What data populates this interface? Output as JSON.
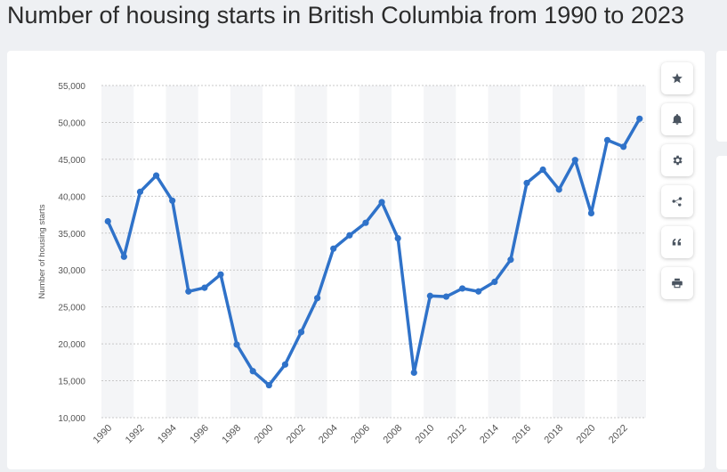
{
  "title": "Number of housing starts in British Columbia from 1990 to 2023",
  "toolbar": [
    {
      "name": "star-icon"
    },
    {
      "name": "bell-icon"
    },
    {
      "name": "gear-icon"
    },
    {
      "name": "share-icon"
    },
    {
      "name": "quote-icon"
    },
    {
      "name": "print-icon"
    }
  ],
  "colors": {
    "line": "#2f72c9",
    "band": "#f4f5f7",
    "grid": "#c8c8c8"
  },
  "chart_data": {
    "type": "line",
    "title": "Number of housing starts in British Columbia from 1990 to 2023",
    "ylabel": "Number of housing starts",
    "xlabel": "",
    "ylim": [
      10000,
      55000
    ],
    "yticks": [
      10000,
      15000,
      20000,
      25000,
      30000,
      35000,
      40000,
      45000,
      50000,
      55000
    ],
    "ytick_labels": [
      "10,000",
      "15,000",
      "20,000",
      "25,000",
      "30,000",
      "35,000",
      "40,000",
      "45,000",
      "50,000",
      "55,000"
    ],
    "xtick_labels": [
      "1990",
      "1992",
      "1994",
      "1996",
      "1998",
      "2000",
      "2002",
      "2004",
      "2006",
      "2008",
      "2010",
      "2012",
      "2014",
      "2016",
      "2018",
      "2020",
      "2022"
    ],
    "grid": true,
    "x": [
      1990,
      1991,
      1992,
      1993,
      1994,
      1995,
      1996,
      1997,
      1998,
      1999,
      2000,
      2001,
      2002,
      2003,
      2004,
      2005,
      2006,
      2007,
      2008,
      2009,
      2010,
      2011,
      2012,
      2013,
      2014,
      2015,
      2016,
      2017,
      2018,
      2019,
      2020,
      2021,
      2022,
      2023
    ],
    "series": [
      {
        "values": [
          36600,
          31800,
          40600,
          42800,
          39400,
          27100,
          27600,
          29400,
          19900,
          16300,
          14400,
          17200,
          21600,
          26200,
          32900,
          34700,
          36400,
          39200,
          34300,
          16100,
          26500,
          26400,
          27500,
          27100,
          28400,
          31400,
          41800,
          43600,
          40900,
          44900,
          37700,
          47600,
          46700,
          50500
        ]
      }
    ]
  }
}
